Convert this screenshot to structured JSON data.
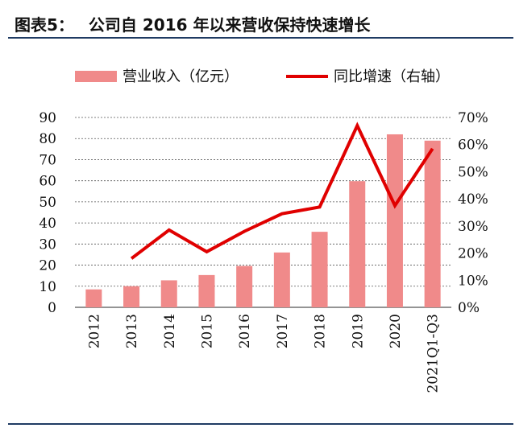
{
  "figure": {
    "label": "图表5：",
    "title": "公司自 2016 年以来营收保持快速增长"
  },
  "chart_data": {
    "type": "bar+line",
    "categories": [
      "2012",
      "2013",
      "2014",
      "2015",
      "2016",
      "2017",
      "2018",
      "2019",
      "2020",
      "2021Q1-Q3"
    ],
    "series": [
      {
        "name": "营业收入（亿元）",
        "type": "bar",
        "axis": "left",
        "color": "#f08a8a",
        "values": [
          8.5,
          10,
          12.8,
          15.3,
          19.6,
          26,
          35.8,
          59.8,
          82,
          79
        ]
      },
      {
        "name": "同比增速（右轴）",
        "type": "line",
        "axis": "right",
        "color": "#e00000",
        "values": [
          null,
          18,
          28.5,
          20.5,
          28,
          34.5,
          37,
          67,
          37.5,
          58.5
        ]
      }
    ],
    "left_axis": {
      "ylim": [
        0,
        90
      ],
      "ticks": [
        "0",
        "10",
        "20",
        "30",
        "40",
        "50",
        "60",
        "70",
        "80",
        "90"
      ]
    },
    "right_axis": {
      "ylim": [
        0,
        70
      ],
      "ticks": [
        "0%",
        "10%",
        "20%",
        "30%",
        "40%",
        "50%",
        "60%",
        "70%"
      ]
    },
    "grid": "horizontal dashed",
    "legend": "top"
  }
}
